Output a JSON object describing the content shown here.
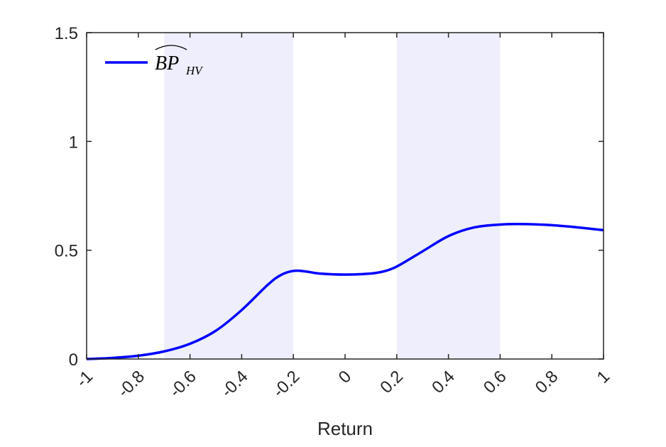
{
  "chart_data": {
    "type": "line",
    "xlabel": "Return",
    "ylabel": "",
    "xlim": [
      -1,
      1
    ],
    "ylim": [
      0,
      1.5
    ],
    "x_ticks": [
      "-1",
      "-0.8",
      "-0.6",
      "-0.4",
      "-0.2",
      "0",
      "0.2",
      "0.4",
      "0.6",
      "0.8",
      "1"
    ],
    "y_ticks": [
      "0",
      "0.5",
      "1",
      "1.5"
    ],
    "x_tick_values": [
      -1,
      -0.8,
      -0.6,
      -0.4,
      -0.2,
      0,
      0.2,
      0.4,
      0.6,
      0.8,
      1
    ],
    "y_tick_values": [
      0,
      0.5,
      1,
      1.5
    ],
    "grid": false,
    "legend": {
      "placement": "top-left",
      "main": "BP",
      "subscript": "HV"
    },
    "shaded_regions": [
      {
        "x_start": -0.7,
        "x_end": -0.2,
        "color": "#eeeefc"
      },
      {
        "x_start": 0.2,
        "x_end": 0.6,
        "color": "#eeeefc"
      }
    ],
    "series": [
      {
        "color": "#0000ff",
        "x": [
          -1,
          -0.9,
          -0.8,
          -0.7,
          -0.6,
          -0.5,
          -0.4,
          -0.3,
          -0.25,
          -0.2,
          -0.15,
          -0.1,
          0,
          0.1,
          0.15,
          0.2,
          0.3,
          0.4,
          0.5,
          0.6,
          0.7,
          0.8,
          0.9,
          1
        ],
        "y": [
          0,
          0.005,
          0.015,
          0.035,
          0.07,
          0.13,
          0.225,
          0.34,
          0.385,
          0.405,
          0.402,
          0.393,
          0.388,
          0.393,
          0.403,
          0.425,
          0.495,
          0.565,
          0.605,
          0.618,
          0.62,
          0.615,
          0.605,
          0.592
        ]
      }
    ]
  }
}
